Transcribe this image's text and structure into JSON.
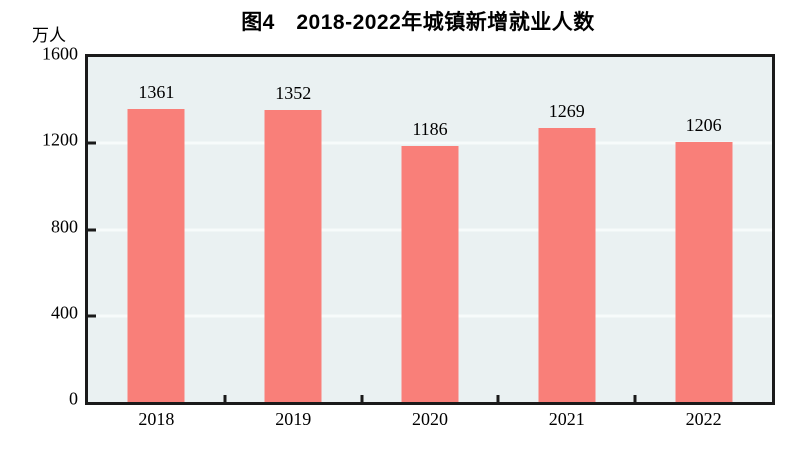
{
  "figure": {
    "title": "图4　2018-2022年城镇新增就业人数",
    "unit_label": "万人"
  },
  "chart_data": {
    "type": "bar",
    "title": "图4　2018-2022年城镇新增就业人数",
    "categories": [
      "2018",
      "2019",
      "2020",
      "2021",
      "2022"
    ],
    "values": [
      1361,
      1352,
      1186,
      1269,
      1206
    ],
    "xlabel": "",
    "ylabel": "万人",
    "ylim": [
      0,
      1600
    ],
    "yticks": [
      0,
      400,
      800,
      1200,
      1600
    ],
    "gridlines_at": [
      400,
      800,
      1200
    ],
    "grid": true,
    "legend_position": "none",
    "data_labels": true,
    "colors": {
      "bar": "#f97f79",
      "panel_background": "#eaf1f2",
      "gridline": "#f7fbfb",
      "axis_border": "#1a1a1a",
      "text": "#000000"
    }
  }
}
